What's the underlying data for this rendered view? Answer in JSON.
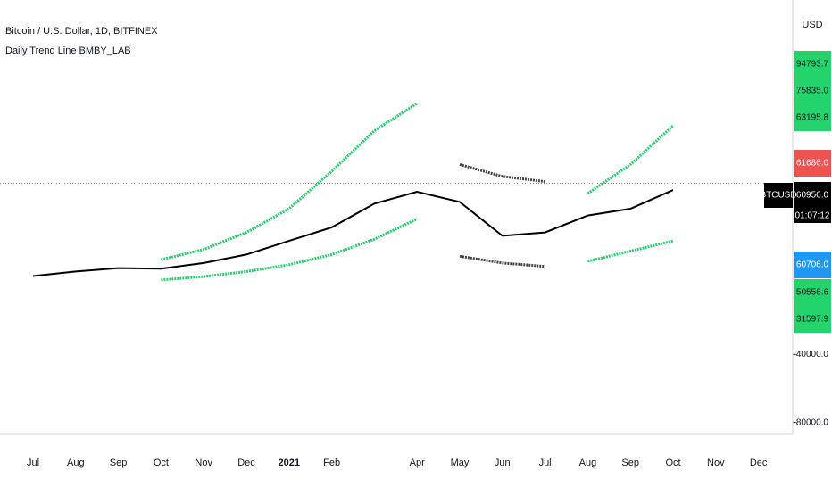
{
  "chart_data": {
    "type": "line",
    "title": "Bitcoin / U.S. Dollar, 1D, BITFINEX",
    "subtitle": "Daily Trend Line BMBY_LAB",
    "currency": "USD",
    "symbol": "BTCUSD",
    "countdown": "01:07:12",
    "categories": [
      "Jul",
      "Aug",
      "Sep",
      "Oct",
      "Nov",
      "Dec",
      "2021",
      "Feb",
      null,
      "Apr",
      "May",
      "Jun",
      "Jul",
      "Aug",
      "Sep",
      "Oct",
      "Nov",
      "Dec"
    ],
    "series": [
      {
        "color": "#000000",
        "values": [
          6300,
          9000,
          11000,
          10600,
          14000,
          19000,
          27000,
          35000,
          49000,
          56000,
          50000,
          30000,
          32000,
          42000,
          46000,
          57000,
          null,
          null
        ]
      },
      {
        "color": "#2ecc71",
        "values": [
          null,
          null,
          null,
          16000,
          22000,
          32000,
          46000,
          68000,
          92000,
          108000,
          null,
          null,
          null,
          55000,
          72000,
          95000,
          null,
          null
        ]
      },
      {
        "color": "#2ecc71",
        "values": [
          null,
          null,
          null,
          4000,
          6000,
          9000,
          13000,
          19000,
          28000,
          40000,
          null,
          null,
          null,
          15000,
          21000,
          27000,
          null,
          null
        ]
      },
      {
        "color": "#444444",
        "values": [
          null,
          null,
          null,
          null,
          null,
          null,
          null,
          null,
          null,
          null,
          72000,
          65000,
          62000,
          null,
          null,
          null,
          null,
          null
        ]
      },
      {
        "color": "#444444",
        "values": [
          null,
          null,
          null,
          null,
          null,
          null,
          null,
          null,
          null,
          null,
          18000,
          14000,
          12000,
          null,
          null,
          null,
          null,
          null
        ]
      }
    ],
    "price_labels": [
      {
        "value": 94793.7,
        "label": "94793.7",
        "color": "#22d46b"
      },
      {
        "value": 75835.0,
        "label": "75835.0",
        "color": "#22d46b"
      },
      {
        "value": 63195.8,
        "label": "63195.8",
        "color": "#22d46b"
      },
      {
        "value": 61686.0,
        "label": "61686.0",
        "color": "#ef5350"
      },
      {
        "value": 60956.0,
        "label": "60956.0",
        "color": "#000000"
      },
      {
        "value": 60706.0,
        "label": "60706.0",
        "color": "#2196f3"
      },
      {
        "value": 50556.6,
        "label": "50556.6",
        "color": "#22d46b"
      },
      {
        "value": 31597.9,
        "label": "31597.9",
        "color": "#22d46b"
      }
    ],
    "ylim": [
      -87000,
      169000
    ],
    "yticks": [
      {
        "value": -40000,
        "label": "-40000.0"
      },
      {
        "value": -80000,
        "label": "-80000.0"
      }
    ]
  }
}
